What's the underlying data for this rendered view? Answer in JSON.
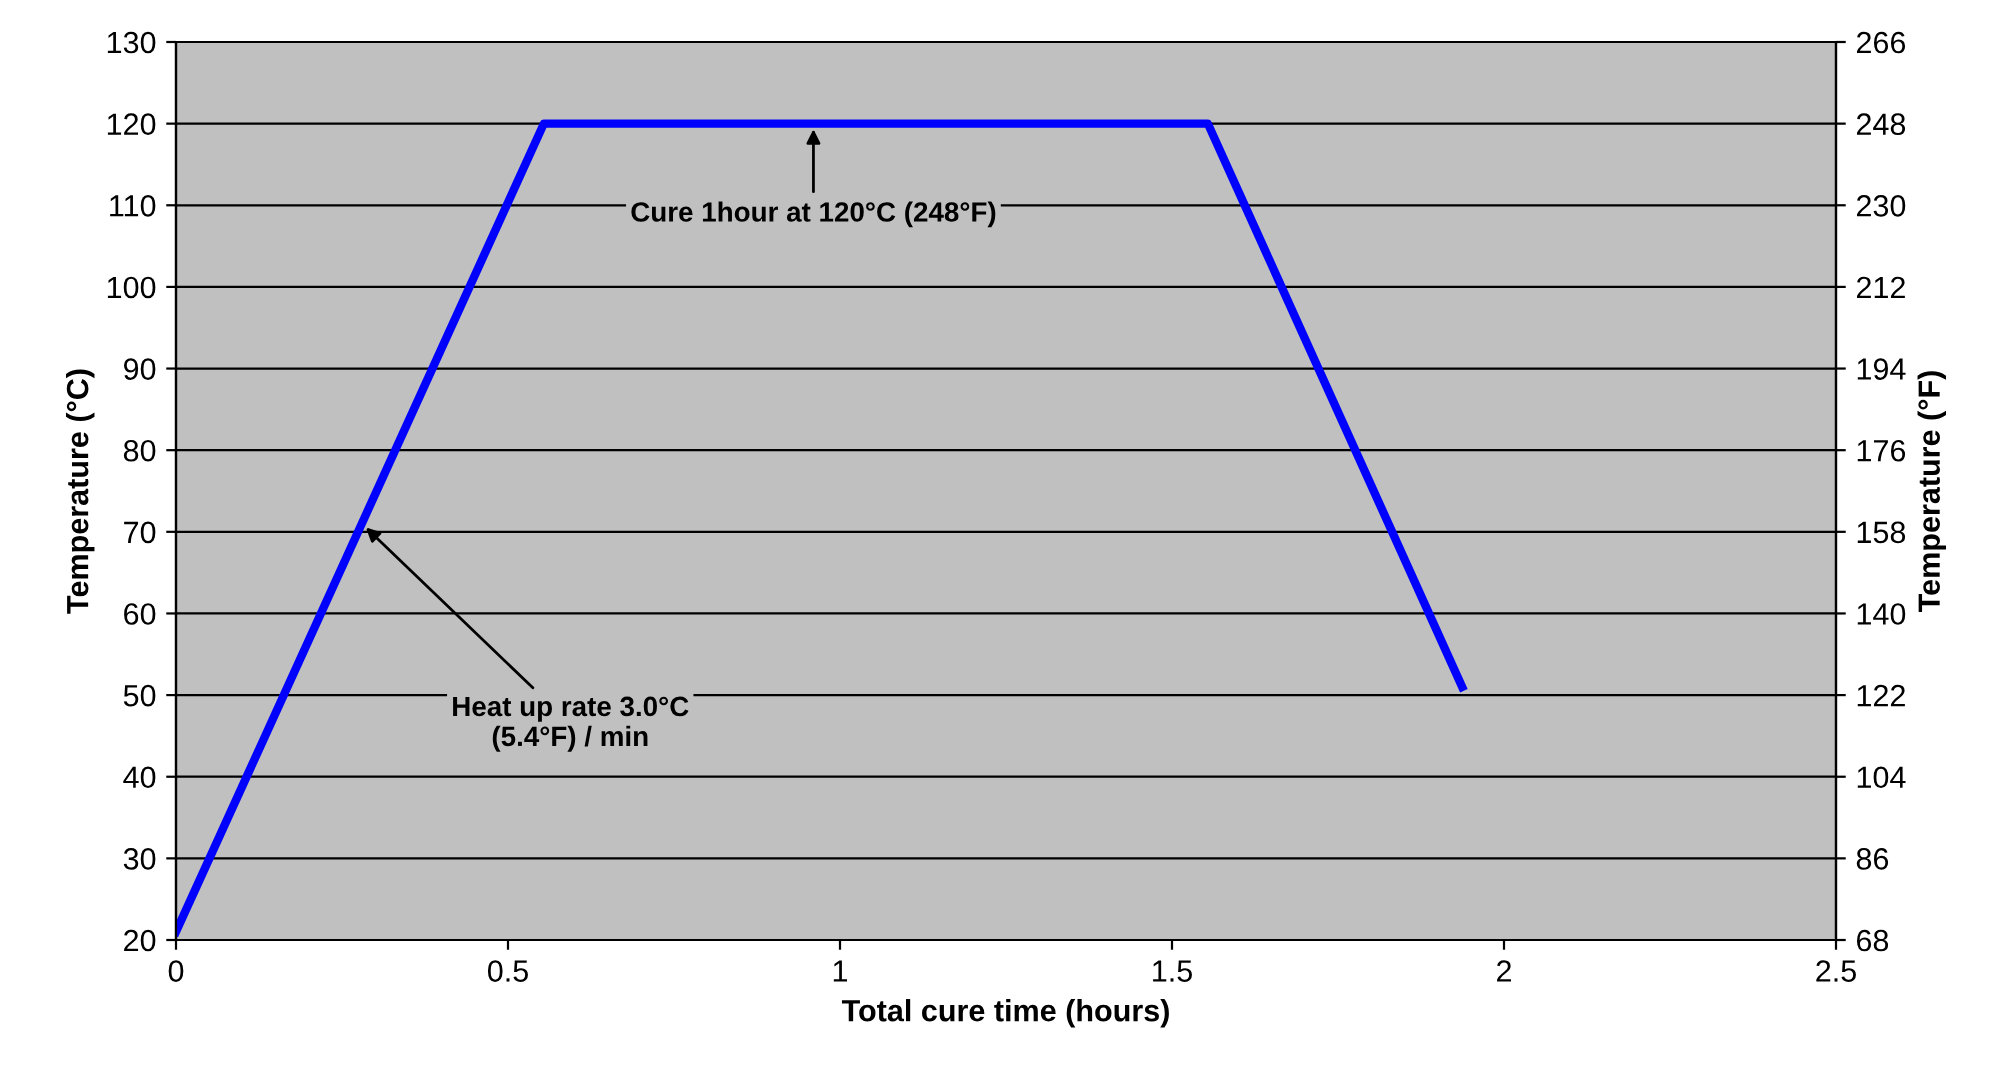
{
  "chart_data": {
    "type": "line",
    "xlabel": "Total cure time (hours)",
    "ylabel": "Temperature (°C)",
    "y2label": "Temperature (°F)",
    "x": [
      0,
      0.554,
      1.554,
      1.937
    ],
    "series": [
      {
        "color": "#0000ff",
        "values": [
          21,
          120,
          120,
          51
        ]
      }
    ],
    "xlim": [
      0,
      2.5
    ],
    "xticks": [
      0,
      0.5,
      1,
      1.5,
      2,
      2.5
    ],
    "ylim": [
      20,
      130
    ],
    "yticks": [
      20,
      30,
      40,
      50,
      60,
      70,
      80,
      90,
      100,
      110,
      120,
      130
    ],
    "y2lim": [
      68,
      266
    ],
    "y2ticks": [
      68,
      86,
      104,
      122,
      140,
      158,
      176,
      194,
      212,
      230,
      248,
      266
    ],
    "grid": "y",
    "legend": false,
    "marker": "none",
    "line_style": "solid",
    "annotations": [
      {
        "text": "Cure 1hour at 120°C (248°F)",
        "x": 0.96,
        "y": 120
      },
      {
        "text": "Heat up rate 3.0°C\n(5.4°F) / min",
        "x": 0.28,
        "y": 71
      }
    ]
  }
}
